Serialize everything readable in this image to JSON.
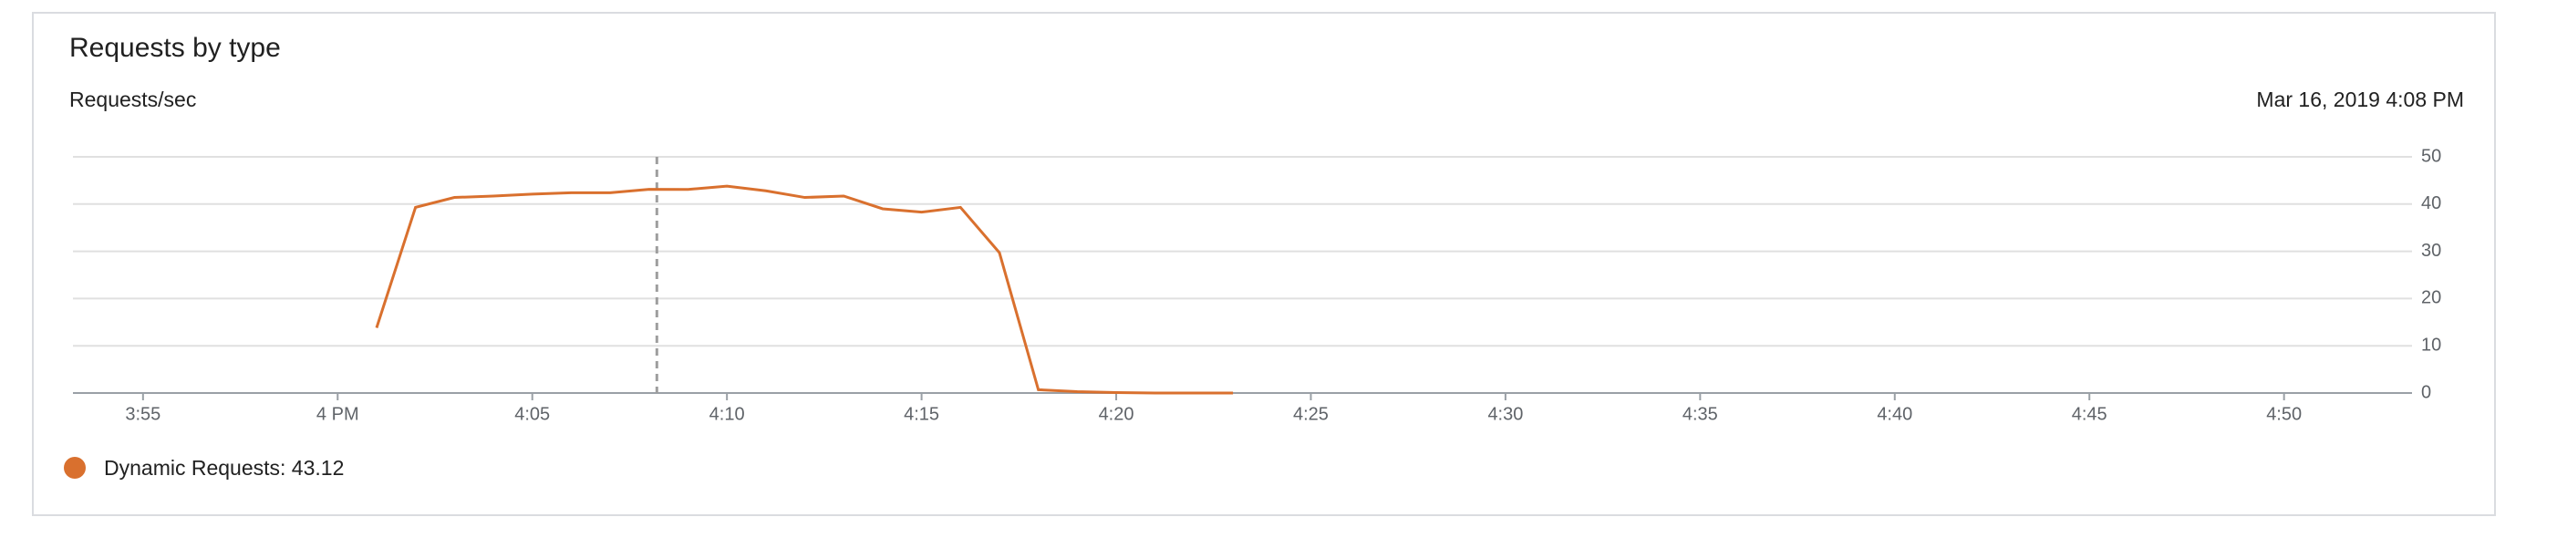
{
  "chart_data": {
    "type": "line",
    "title": "Requests by type",
    "y_axis_label": "Requests/sec",
    "cursor_label": "Mar 16, 2019 4:08 PM",
    "cursor_x": 8.2,
    "x": [
      1,
      2,
      3,
      4,
      5,
      6,
      7,
      8,
      9,
      10,
      11,
      12,
      13,
      14,
      15,
      16,
      17,
      18,
      19,
      20,
      21,
      22,
      23
    ],
    "series": [
      {
        "name": "Dynamic Requests: 43.12",
        "color": "#d9702e",
        "values": [
          13.8,
          39.3,
          41.4,
          41.7,
          42.1,
          42.4,
          42.4,
          43.12,
          43.1,
          43.8,
          42.8,
          41.4,
          41.7,
          39,
          38.3,
          39.3,
          29.7,
          0.7,
          0.3,
          0.1,
          0,
          0,
          0
        ]
      }
    ],
    "xlim": [
      -6.8,
      53.1
    ],
    "xticks": [
      {
        "value": -5,
        "label": "3:55"
      },
      {
        "value": 0,
        "label": "4 PM"
      },
      {
        "value": 5,
        "label": "4:05"
      },
      {
        "value": 10,
        "label": "4:10"
      },
      {
        "value": 15,
        "label": "4:15"
      },
      {
        "value": 20,
        "label": "4:20"
      },
      {
        "value": 25,
        "label": "4:25"
      },
      {
        "value": 30,
        "label": "4:30"
      },
      {
        "value": 35,
        "label": "4:35"
      },
      {
        "value": 40,
        "label": "4:40"
      },
      {
        "value": 45,
        "label": "4:45"
      },
      {
        "value": 50,
        "label": "4:50"
      }
    ],
    "ylim": [
      0,
      50
    ],
    "yticks": [
      0,
      10,
      20,
      30,
      40,
      50
    ],
    "grid": true
  }
}
